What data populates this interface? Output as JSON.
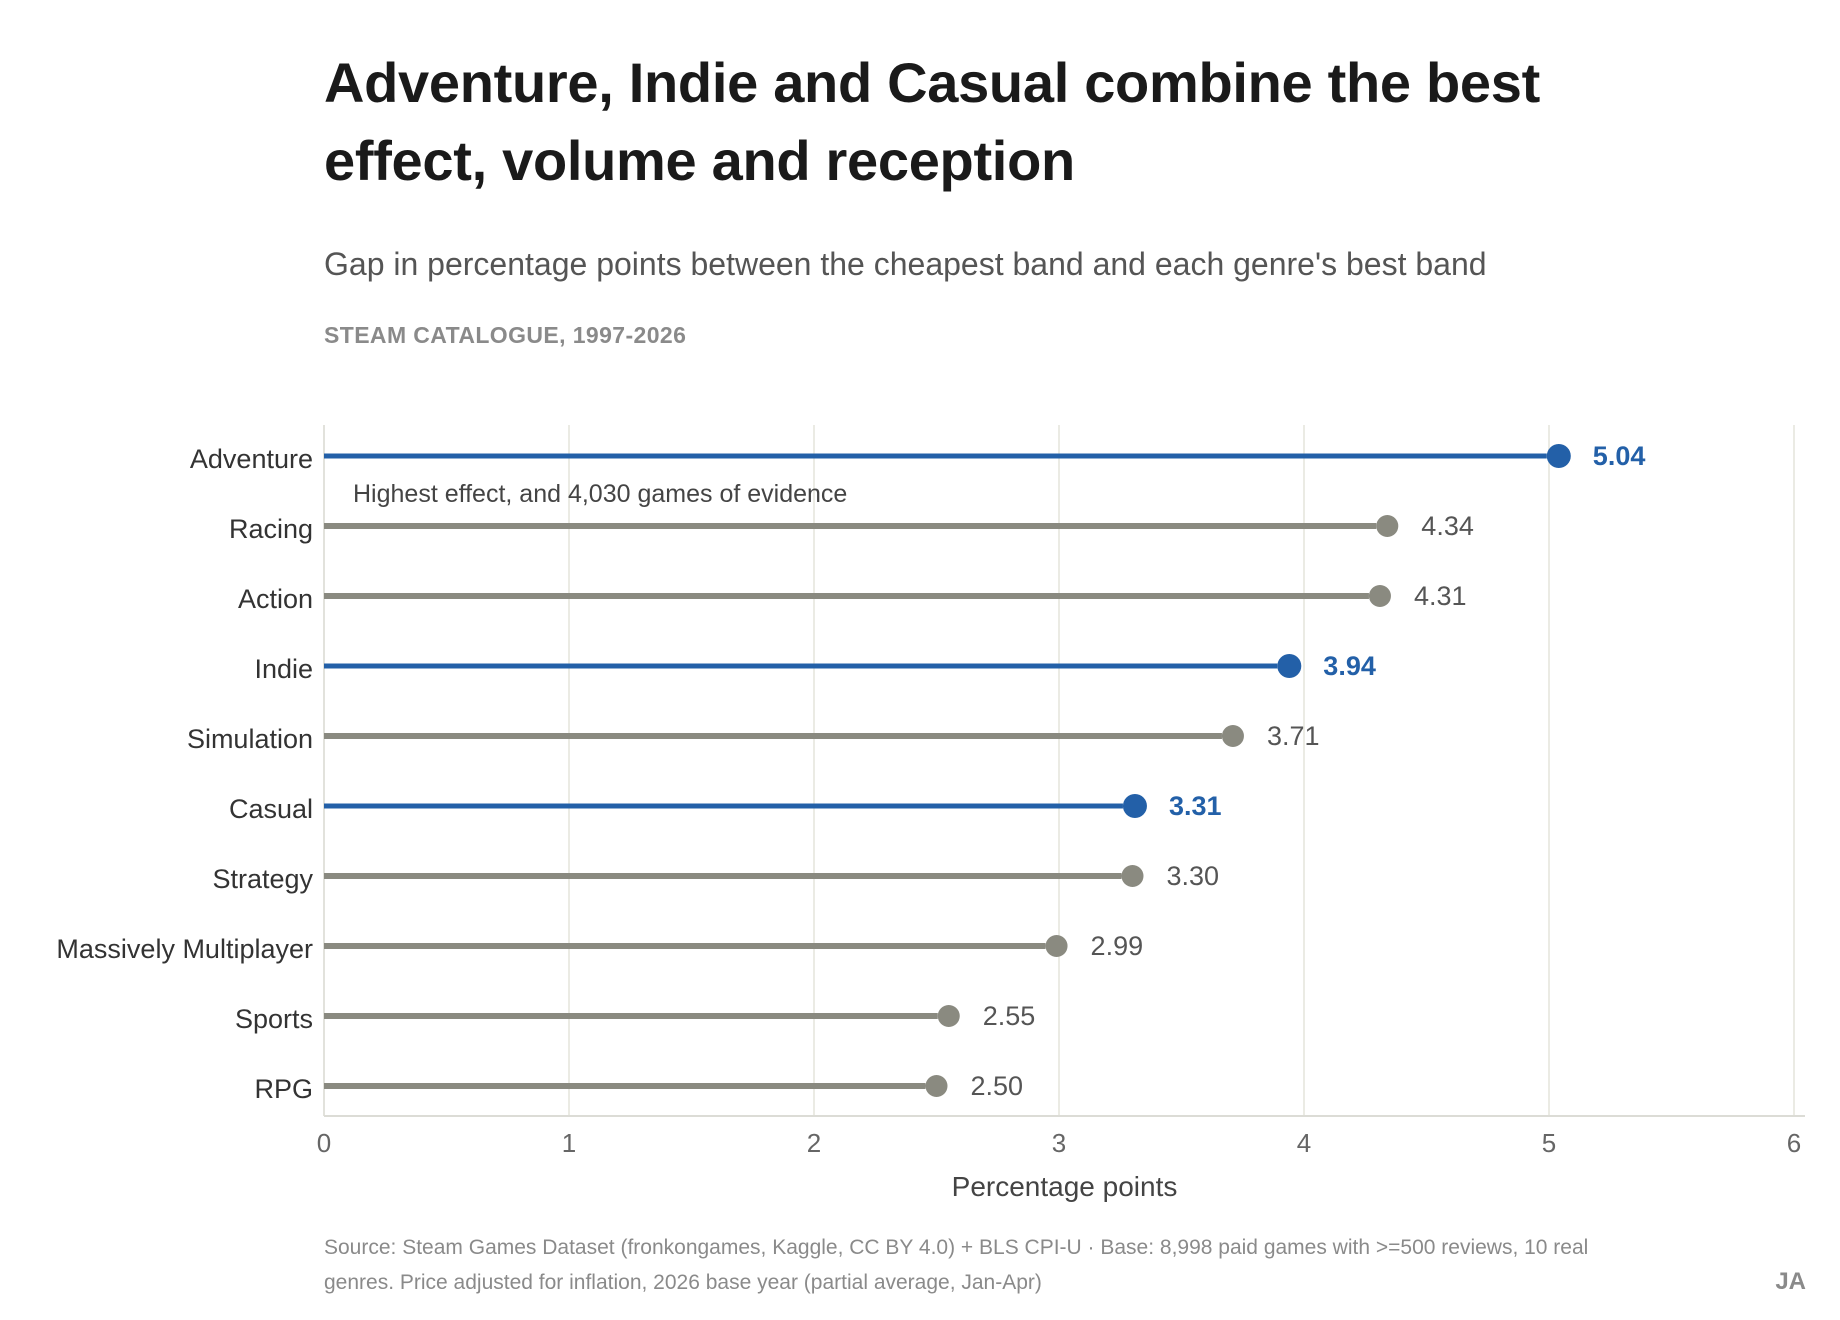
{
  "header": {
    "title": "Adventure, Indie and Casual combine the best effect, volume and reception",
    "subtitle": "Gap in percentage points between the cheapest band and each genre's best band",
    "kicker": "STEAM CATALOGUE, 1997-2026"
  },
  "footer": {
    "source": "Source: Steam Games Dataset (fronkongames, Kaggle, CC BY 4.0) + BLS CPI-U · Base: 8,998 paid games with >=500 reviews, 10 real genres. Price adjusted for inflation, 2026 base year (partial average, Jan-Apr)",
    "signature": "JA"
  },
  "colors": {
    "highlight": "#2360a8",
    "muted": "#8a8a80",
    "grid": "#ebebe4",
    "axis_text": "#666666",
    "label_text": "#333333"
  },
  "chart_data": {
    "type": "lollipop",
    "orientation": "horizontal",
    "xlabel": "Percentage points",
    "xlim": [
      0,
      6
    ],
    "xticks": [
      "0",
      "1",
      "2",
      "3",
      "4",
      "5",
      "6"
    ],
    "grid": "vertical",
    "categories": [
      "Adventure",
      "Racing",
      "Action",
      "Indie",
      "Simulation",
      "Casual",
      "Strategy",
      "Massively Multiplayer",
      "Sports",
      "RPG"
    ],
    "values": [
      5.04,
      4.34,
      4.31,
      3.94,
      3.71,
      3.31,
      3.3,
      2.99,
      2.55,
      2.5
    ],
    "value_labels": [
      "5.04",
      "4.34",
      "4.31",
      "3.94",
      "3.71",
      "3.31",
      "3.30",
      "2.99",
      "2.55",
      "2.50"
    ],
    "highlighted": [
      "Adventure",
      "Indie",
      "Casual"
    ],
    "annotations": [
      {
        "category": "Adventure",
        "text": "Highest effect, and 4,030 games of evidence"
      }
    ]
  }
}
